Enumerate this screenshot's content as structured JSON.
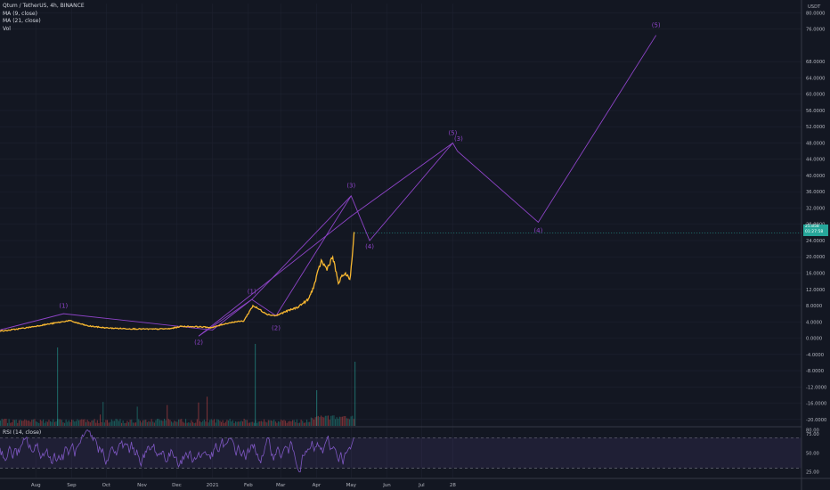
{
  "legend": {
    "symbol": "Qtum / TetherUS, 4h, BINANCE",
    "ma1": "MA (9, close)",
    "ma2": "MA (21, close)",
    "vol": "Vol"
  },
  "rsi_title": "RSI (14, close)",
  "price_tag": {
    "line1": "25.858",
    "line2": "01:27:58"
  },
  "colors": {
    "background": "#131722",
    "price": "#f7b731",
    "wave": "#8e44c8",
    "rsi": "#7e57c2",
    "volume_up": "#26a69a",
    "volume_down": "#ef5350",
    "grid": "#1e2230",
    "text": "#b2b5be"
  },
  "chart_data": [
    {
      "type": "line",
      "title": "Qtum / TetherUS, 4h, BINANCE",
      "y_unit": "USDT",
      "ylim": [
        -22,
        81
      ],
      "y_ticks": [
        80,
        76,
        68,
        64,
        60,
        56,
        52,
        48,
        44,
        40,
        36,
        32,
        28,
        24,
        20,
        16,
        12,
        8,
        4,
        0,
        -4,
        -8,
        -12,
        -16,
        -20
      ],
      "y_tick_labels": [
        "80.0000",
        "76.0000",
        "68.0000",
        "64.0000",
        "60.0000",
        "56.0000",
        "52.0000",
        "48.0000",
        "44.0000",
        "40.0000",
        "36.0000",
        "32.0000",
        "28.0000",
        "24.0000",
        "20.0000",
        "16.0000",
        "12.0000",
        "8.0000",
        "4.0000",
        "0.0000",
        "-4.0000",
        "-8.0000",
        "-12.0000",
        "-16.0000",
        "-20.0000"
      ],
      "x_ticks": [
        "Aug",
        "Sep",
        "Oct",
        "Nov",
        "Dec",
        "2021",
        "Feb",
        "Mar",
        "Apr",
        "May",
        "Jun",
        "Jul",
        "28"
      ],
      "grid": true,
      "price_series": {
        "name": "price",
        "x": [
          "2020-07-05",
          "2020-07-25",
          "2020-08-15",
          "2020-08-30",
          "2020-09-15",
          "2020-10-01",
          "2020-10-20",
          "2020-11-10",
          "2020-11-25",
          "2020-12-05",
          "2020-12-20",
          "2021-01-01",
          "2021-01-10",
          "2021-01-20",
          "2021-01-28",
          "2021-02-05",
          "2021-02-12",
          "2021-02-18",
          "2021-02-25",
          "2021-03-05",
          "2021-03-15",
          "2021-03-25",
          "2021-03-30",
          "2021-04-05",
          "2021-04-10",
          "2021-04-15",
          "2021-04-20",
          "2021-04-25",
          "2021-04-30",
          "2021-05-02",
          "2021-05-04"
        ],
        "y": [
          1.8,
          2.6,
          3.6,
          4.3,
          3.0,
          2.5,
          2.3,
          2.2,
          2.3,
          2.9,
          2.8,
          2.6,
          3.4,
          4.0,
          4.2,
          8.0,
          6.8,
          5.8,
          5.5,
          6.5,
          7.5,
          9.5,
          13.0,
          19.0,
          17.0,
          20.0,
          13.5,
          16.0,
          14.5,
          20.0,
          28.5
        ]
      },
      "volume": {
        "name": "Vol"
      }
    },
    {
      "type": "line",
      "title": "Elliott wave projection",
      "lines": [
        {
          "x": [
            "2020-07-01",
            "2020-08-25",
            "2021-01-01",
            "2021-02-04",
            "2021-02-25",
            "2021-05-01"
          ],
          "y": [
            2.0,
            6.0,
            2.0,
            9.5,
            5.5,
            35.0
          ]
        },
        {
          "x": [
            "2020-12-20",
            "2021-02-04",
            "2021-05-01",
            "2021-05-17",
            "2021-07-28",
            "2021-08-01",
            "2021-10-10",
            "2022-01-20"
          ],
          "y": [
            0.5,
            9.5,
            35.0,
            24.0,
            48.0,
            46.0,
            28.5,
            74.5
          ]
        },
        {
          "x": [
            "2020-12-20",
            "2021-05-01",
            "2021-07-28"
          ],
          "y": [
            0.5,
            30.0,
            48.0
          ]
        }
      ],
      "wave_labels": [
        {
          "text": "(1)",
          "x": "2020-08-25",
          "y": 7.5
        },
        {
          "text": "(2)",
          "x": "2020-12-20",
          "y": -1.5
        },
        {
          "text": "(1)",
          "x": "2021-02-04",
          "y": 11.0
        },
        {
          "text": "(2)",
          "x": "2021-02-25",
          "y": 2.0
        },
        {
          "text": "(3)",
          "x": "2021-05-01",
          "y": 37.0
        },
        {
          "text": "(4)",
          "x": "2021-05-17",
          "y": 22.0
        },
        {
          "text": "(5)",
          "x": "2021-07-28",
          "y": 50.0
        },
        {
          "text": "(3)",
          "x": "2021-08-02",
          "y": 48.5
        },
        {
          "text": "(4)",
          "x": "2021-10-10",
          "y": 26.0
        },
        {
          "text": "(5)",
          "x": "2022-01-20",
          "y": 76.5
        }
      ]
    },
    {
      "type": "line",
      "title": "RSI (14, close)",
      "ylim": [
        20,
        82
      ],
      "y_ticks": [
        80,
        75,
        50,
        25
      ],
      "y_tick_labels": [
        "80.00",
        "75.00",
        "50.00",
        "25.00"
      ],
      "bands": [
        30,
        70
      ]
    }
  ]
}
